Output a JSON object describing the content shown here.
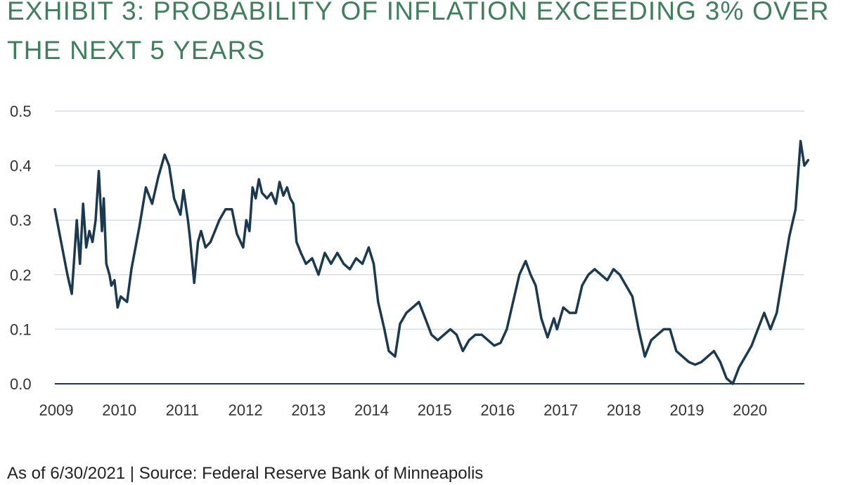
{
  "title": "EXHIBIT 3: PROBABILITY OF INFLATION EXCEEDING 3% OVER THE NEXT 5 YEARS",
  "footer": "As of 6/30/2021 | Source: Federal Reserve Bank of Minneapolis",
  "colors": {
    "title": "#3f7f5c",
    "line": "#1b3a4f",
    "grid": "#d5dee6",
    "axis": "#1b3a4f"
  },
  "chart_data": {
    "type": "line",
    "title": "EXHIBIT 3: PROBABILITY OF INFLATION EXCEEDING 3% OVER THE NEXT 5 YEARS",
    "xlabel": "",
    "ylabel": "",
    "xlim": [
      2009,
      2021
    ],
    "ylim": [
      0,
      0.5
    ],
    "grid": true,
    "x_ticks": [
      "2009",
      "2010",
      "2011",
      "2012",
      "2013",
      "2014",
      "2015",
      "2016",
      "2017",
      "2018",
      "2019",
      "2020"
    ],
    "y_ticks": [
      "0.0",
      "0.1",
      "0.2",
      "0.3",
      "0.4",
      "0.5"
    ],
    "series": [
      {
        "x": [
          2009.0,
          2009.1,
          2009.2,
          2009.27,
          2009.35,
          2009.4,
          2009.45,
          2009.5,
          2009.55,
          2009.6,
          2009.65,
          2009.7,
          2009.75,
          2009.78,
          2009.82,
          2009.87,
          2009.9,
          2009.95,
          2010.0,
          2010.05,
          2010.1,
          2010.15,
          2010.22,
          2010.35,
          2010.45,
          2010.55,
          2010.65,
          2010.75,
          2010.82,
          2010.9,
          2011.0,
          2011.05,
          2011.12,
          2011.15,
          2011.22,
          2011.28,
          2011.33,
          2011.4,
          2011.48,
          2011.55,
          2011.62,
          2011.72,
          2011.82,
          2011.9,
          2012.0,
          2012.05,
          2012.1,
          2012.15,
          2012.2,
          2012.25,
          2012.3,
          2012.38,
          2012.45,
          2012.52,
          2012.58,
          2012.64,
          2012.7,
          2012.75,
          2012.8,
          2012.85,
          2012.92,
          2013.0,
          2013.1,
          2013.2,
          2013.3,
          2013.4,
          2013.5,
          2013.6,
          2013.7,
          2013.8,
          2013.9,
          2014.0,
          2014.08,
          2014.15,
          2014.25,
          2014.32,
          2014.42,
          2014.5,
          2014.6,
          2014.7,
          2014.8,
          2014.9,
          2015.0,
          2015.1,
          2015.2,
          2015.3,
          2015.4,
          2015.5,
          2015.6,
          2015.7,
          2015.8,
          2015.9,
          2016.0,
          2016.1,
          2016.2,
          2016.3,
          2016.4,
          2016.5,
          2016.58,
          2016.66,
          2016.75,
          2016.85,
          2016.95,
          2017.0,
          2017.1,
          2017.2,
          2017.3,
          2017.4,
          2017.5,
          2017.6,
          2017.7,
          2017.8,
          2017.9,
          2018.0,
          2018.1,
          2018.2,
          2018.3,
          2018.4,
          2018.5,
          2018.6,
          2018.7,
          2018.8,
          2018.9,
          2019.0,
          2019.1,
          2019.2,
          2019.3,
          2019.4,
          2019.5,
          2019.6,
          2019.7,
          2019.8,
          2019.9,
          2020.0,
          2020.1,
          2020.2,
          2020.3,
          2020.4,
          2020.5,
          2020.6,
          2020.7,
          2020.8,
          2020.88,
          2020.94,
          2021.0
        ],
        "values": [
          0.32,
          0.26,
          0.2,
          0.165,
          0.3,
          0.22,
          0.33,
          0.25,
          0.28,
          0.26,
          0.3,
          0.39,
          0.28,
          0.34,
          0.22,
          0.2,
          0.18,
          0.19,
          0.14,
          0.16,
          0.155,
          0.15,
          0.21,
          0.29,
          0.36,
          0.33,
          0.38,
          0.42,
          0.4,
          0.34,
          0.31,
          0.355,
          0.3,
          0.27,
          0.185,
          0.26,
          0.28,
          0.25,
          0.26,
          0.28,
          0.3,
          0.32,
          0.32,
          0.275,
          0.25,
          0.3,
          0.28,
          0.36,
          0.34,
          0.375,
          0.35,
          0.34,
          0.35,
          0.33,
          0.37,
          0.345,
          0.36,
          0.34,
          0.33,
          0.26,
          0.24,
          0.22,
          0.23,
          0.2,
          0.24,
          0.22,
          0.24,
          0.22,
          0.21,
          0.23,
          0.22,
          0.25,
          0.22,
          0.15,
          0.1,
          0.06,
          0.05,
          0.11,
          0.13,
          0.14,
          0.15,
          0.12,
          0.09,
          0.08,
          0.09,
          0.1,
          0.09,
          0.06,
          0.08,
          0.09,
          0.09,
          0.08,
          0.07,
          0.075,
          0.1,
          0.15,
          0.2,
          0.225,
          0.2,
          0.18,
          0.12,
          0.085,
          0.12,
          0.1,
          0.14,
          0.13,
          0.13,
          0.18,
          0.2,
          0.21,
          0.2,
          0.19,
          0.21,
          0.2,
          0.18,
          0.16,
          0.1,
          0.05,
          0.08,
          0.09,
          0.1,
          0.1,
          0.06,
          0.05,
          0.04,
          0.035,
          0.04,
          0.05,
          0.06,
          0.04,
          0.01,
          0.0,
          0.03,
          0.05,
          0.07,
          0.1,
          0.13,
          0.1,
          0.13,
          0.2,
          0.27,
          0.32,
          0.445,
          0.4,
          0.41
        ]
      }
    ]
  }
}
